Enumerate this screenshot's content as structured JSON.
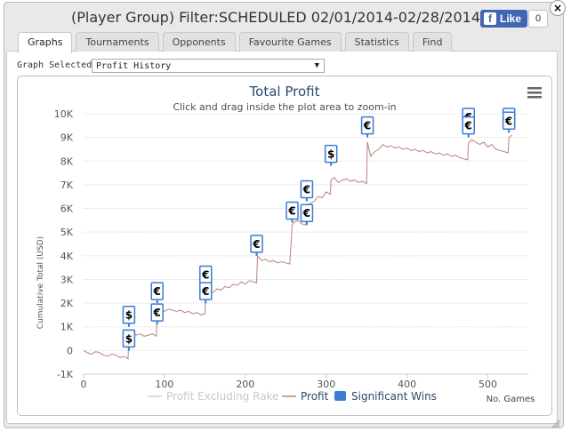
{
  "window": {
    "title": "(Player Group) Filter:SCHEDULED 02/01/2014-02/28/2014",
    "close_glyph": "×"
  },
  "facebook": {
    "like_label": "Like",
    "like_count": "0",
    "icon": "f"
  },
  "tabs": [
    {
      "label": "Graphs",
      "active": true
    },
    {
      "label": "Tournaments",
      "active": false
    },
    {
      "label": "Opponents",
      "active": false
    },
    {
      "label": "Favourite Games",
      "active": false
    },
    {
      "label": "Statistics",
      "active": false
    },
    {
      "label": "Find",
      "active": false
    }
  ],
  "graph_select": {
    "label": "Graph Selected:",
    "value": "Profit History",
    "arrow": "▼"
  },
  "chart_data": {
    "type": "line",
    "title": "Total Profit",
    "subtitle": "Click and drag inside the plot area to zoom-in",
    "ylabel": "Cumulative Total (USD)",
    "xlabel": "No. Games",
    "xlim": [
      0,
      550
    ],
    "ylim": [
      -1000,
      10000
    ],
    "x_ticks": [
      0,
      100,
      200,
      300,
      400,
      500
    ],
    "y_ticks": [
      -1000,
      0,
      1000,
      2000,
      3000,
      4000,
      5000,
      6000,
      7000,
      8000,
      9000,
      10000
    ],
    "y_tick_labels": [
      "-1K",
      "0",
      "1K",
      "2K",
      "3K",
      "4K",
      "5K",
      "6K",
      "7K",
      "8K",
      "9K",
      "10K"
    ],
    "grid": "horizontal-dotted",
    "legend_placement": "bottom",
    "colors": {
      "profit": "#b9827c",
      "excl_rake": "#d0d0d0",
      "flag": "#3a7bd5"
    },
    "series": [
      {
        "name": "Profit Excluding Rake",
        "x": [],
        "y": []
      },
      {
        "name": "Profit",
        "x": [
          0,
          5,
          10,
          15,
          20,
          25,
          30,
          35,
          40,
          45,
          50,
          55,
          56,
          60,
          65,
          70,
          75,
          80,
          85,
          90,
          91,
          95,
          100,
          105,
          110,
          115,
          120,
          125,
          130,
          135,
          140,
          145,
          150,
          151,
          155,
          160,
          165,
          170,
          175,
          180,
          185,
          190,
          195,
          200,
          205,
          210,
          214,
          215,
          220,
          225,
          230,
          235,
          240,
          245,
          250,
          255,
          258,
          260,
          265,
          270,
          275,
          276,
          280,
          285,
          290,
          295,
          300,
          305,
          306,
          310,
          315,
          320,
          325,
          330,
          335,
          340,
          345,
          350,
          351,
          355,
          360,
          365,
          370,
          375,
          380,
          385,
          390,
          395,
          400,
          405,
          410,
          415,
          420,
          425,
          430,
          435,
          440,
          445,
          450,
          455,
          460,
          465,
          470,
          475,
          476,
          480,
          485,
          490,
          495,
          500,
          505,
          510,
          515,
          520,
          525,
          526,
          530
        ],
        "y": [
          0,
          -100,
          -150,
          -50,
          -100,
          -200,
          -250,
          -150,
          -200,
          -300,
          -250,
          -350,
          700,
          750,
          650,
          700,
          600,
          650,
          700,
          600,
          1600,
          1700,
          1650,
          1750,
          1700,
          1650,
          1700,
          1600,
          1650,
          1550,
          1600,
          1500,
          1550,
          2400,
          2500,
          2450,
          2600,
          2550,
          2700,
          2650,
          2800,
          2750,
          2900,
          2800,
          2950,
          2900,
          2850,
          4000,
          3800,
          3850,
          3750,
          3800,
          3700,
          3750,
          3700,
          3650,
          5300,
          5400,
          5500,
          5350,
          5300,
          5800,
          6200,
          6300,
          6500,
          6450,
          6700,
          6600,
          7200,
          7300,
          7100,
          7200,
          7250,
          7150,
          7200,
          7100,
          7150,
          7050,
          8800,
          8200,
          8400,
          8500,
          8700,
          8600,
          8650,
          8550,
          8600,
          8500,
          8550,
          8450,
          8500,
          8400,
          8450,
          8350,
          8400,
          8300,
          8350,
          8250,
          8300,
          8200,
          8250,
          8150,
          8100,
          8050,
          8750,
          8900,
          8800,
          8700,
          8800,
          8600,
          8700,
          8500,
          8450,
          8400,
          8350,
          9000,
          9100
        ]
      }
    ],
    "significant_wins": {
      "name": "Significant Wins",
      "points": [
        {
          "x": 56,
          "y": 1000,
          "label": "$"
        },
        {
          "x": 56,
          "y": 0,
          "label": "$"
        },
        {
          "x": 91,
          "y": 2000,
          "label": "€"
        },
        {
          "x": 91,
          "y": 1100,
          "label": "€"
        },
        {
          "x": 151,
          "y": 2700,
          "label": "€"
        },
        {
          "x": 151,
          "y": 2000,
          "label": "€"
        },
        {
          "x": 214,
          "y": 4000,
          "label": "€"
        },
        {
          "x": 258,
          "y": 5400,
          "label": "€"
        },
        {
          "x": 276,
          "y": 6300,
          "label": "€"
        },
        {
          "x": 276,
          "y": 5300,
          "label": "€"
        },
        {
          "x": 306,
          "y": 7800,
          "label": "$"
        },
        {
          "x": 351,
          "y": 9000,
          "label": "€"
        },
        {
          "x": 476,
          "y": 9950,
          "label": "€"
        },
        {
          "x": 476,
          "y": 9000,
          "label": "€"
        },
        {
          "x": 526,
          "y": 10200,
          "label": "€"
        },
        {
          "x": 526,
          "y": 9200,
          "label": "€"
        }
      ]
    }
  }
}
